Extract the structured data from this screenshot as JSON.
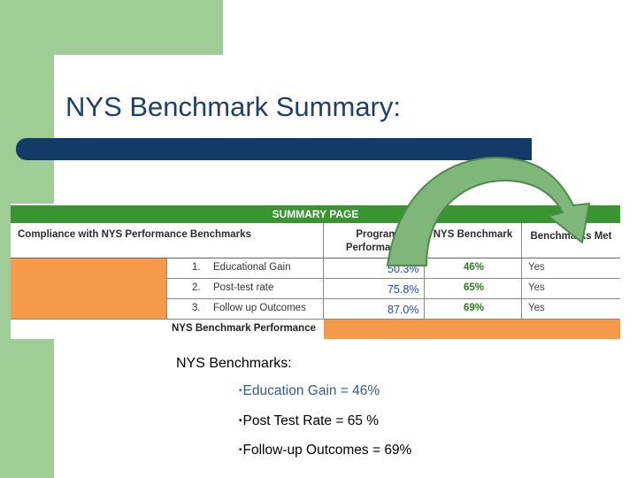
{
  "slide": {
    "title": "NYS Benchmark Summary:",
    "colors": {
      "green_panel": "#9fcd96",
      "title_color": "#1f3f6b",
      "bar_color": "#123b68",
      "table_header": "#3a9431",
      "orange": "#f59a49",
      "arrow_green": "#7fb77a"
    }
  },
  "table": {
    "header": "SUMMARY PAGE",
    "row_label": "Compliance with NYS Performance Benchmarks",
    "col_program": "Program Performance",
    "col_benchmark": "NYS Benchmark",
    "col_met": "Benchmarks Met",
    "rows": [
      {
        "num": "1.",
        "label": "Educational Gain",
        "program": "50.3%",
        "benchmark": "46%",
        "met": "Yes"
      },
      {
        "num": "2.",
        "label": "Post-test rate",
        "program": "75.8%",
        "benchmark": "65%",
        "met": "Yes"
      },
      {
        "num": "3.",
        "label": "Follow up Outcomes",
        "program": "87.0%",
        "benchmark": "69%",
        "met": "Yes"
      }
    ],
    "footer": "NYS Benchmark Performance"
  },
  "benchmarks": {
    "title": "NYS Benchmarks:",
    "bullet": "•",
    "items": [
      "Education Gain = 46%",
      "Post Test Rate = 65 %",
      "Follow-up Outcomes = 69%"
    ]
  }
}
